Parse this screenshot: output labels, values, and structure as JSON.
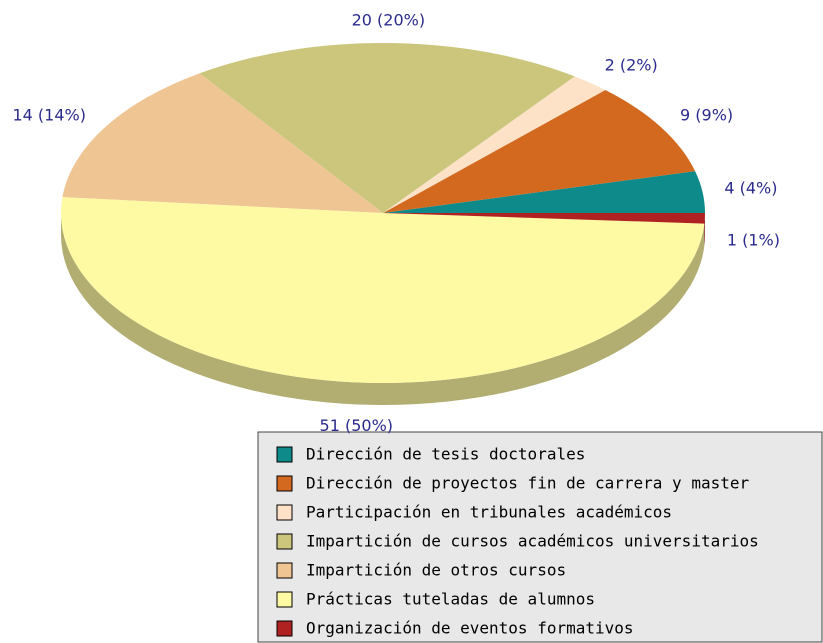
{
  "chart_data": {
    "type": "pie3d",
    "categories": [
      "Dirección de tesis doctorales",
      "Dirección de proyectos fin de carrera y master",
      "Participación en tribunales académicos",
      "Impartición de cursos académicos universitarios",
      "Impartición de otros cursos",
      "Prácticas tuteladas de alumnos",
      "Organización de eventos formativos"
    ],
    "values": [
      4,
      9,
      2,
      20,
      14,
      51,
      1
    ],
    "value_labels": [
      "4 (4%)",
      "9 (9%)",
      "2 (2%)",
      "20 (20%)",
      "14 (14%)",
      "51 (50%)",
      "1 (1%)"
    ],
    "colors": [
      "#0e8a8a",
      "#d2691e",
      "#fde2c8",
      "#cbc67c",
      "#efc593",
      "#fef9a3",
      "#b02222"
    ],
    "legend": "bottom-right"
  }
}
